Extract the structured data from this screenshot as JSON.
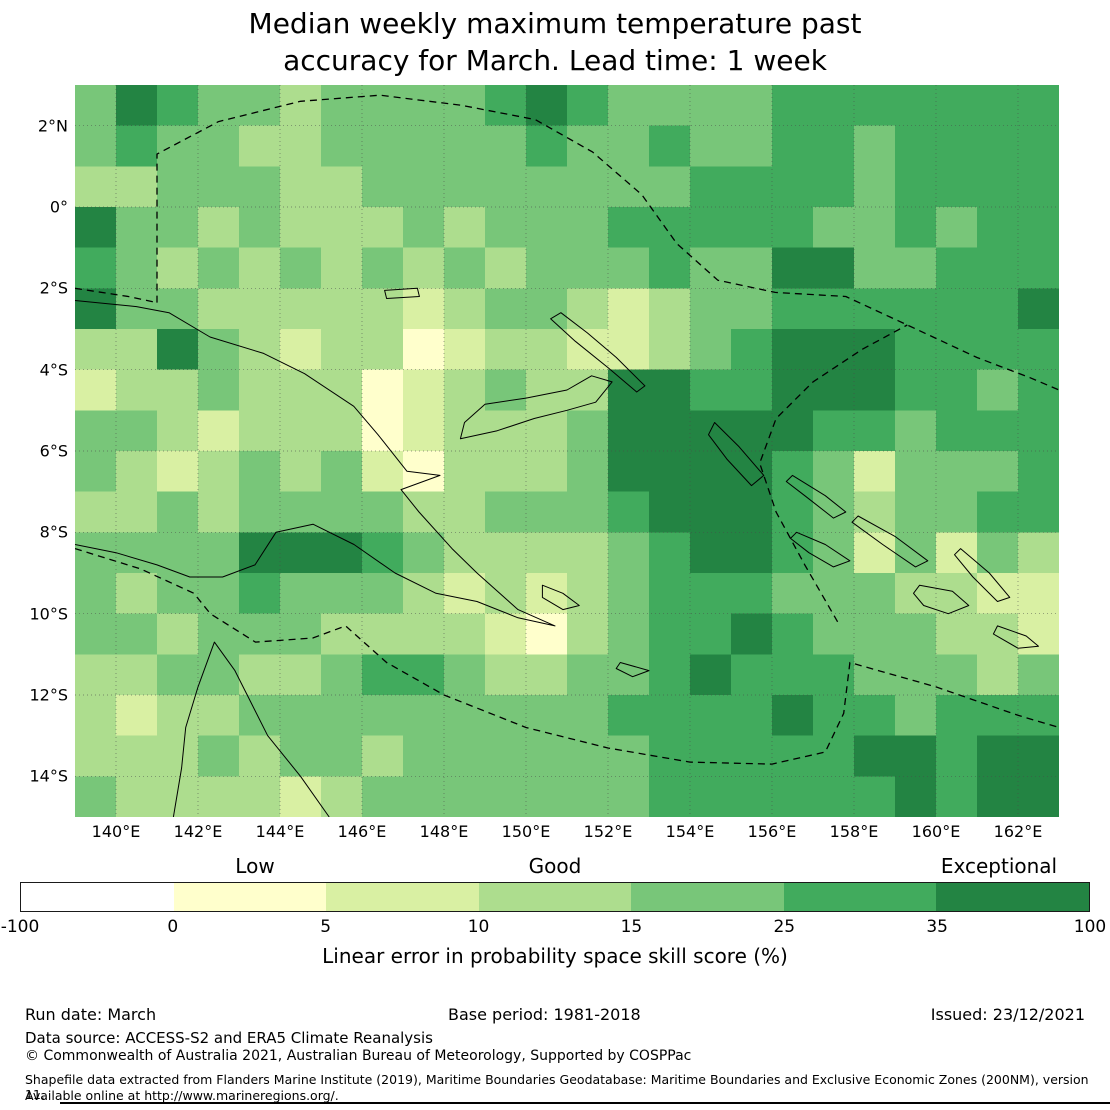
{
  "title": "Median weekly maximum temperature past\naccuracy for March. Lead time: 1 week",
  "map": {
    "lat_ticks": [
      "2°N",
      "0°",
      "2°S",
      "4°S",
      "6°S",
      "8°S",
      "10°S",
      "12°S",
      "14°S"
    ],
    "lon_ticks": [
      "140°E",
      "142°E",
      "144°E",
      "146°E",
      "148°E",
      "150°E",
      "152°E",
      "154°E",
      "156°E",
      "158°E",
      "160°E",
      "162°E"
    ]
  },
  "colorbar": {
    "labels": [
      "Low",
      "Good",
      "Exceptional"
    ],
    "ticks": [
      "-100",
      "0",
      "5",
      "10",
      "15",
      "25",
      "35",
      "100"
    ],
    "caption": "Linear error in probability space skill score (%)"
  },
  "chart_data": {
    "type": "heatmap",
    "title": "Median weekly maximum temperature past accuracy for March. Lead time: 1 week",
    "lon_range": [
      139,
      163
    ],
    "lat_range": [
      -15,
      3
    ],
    "cell_size_deg": 1,
    "grid_on": true,
    "palette": [
      "#ffffff",
      "#ffffcc",
      "#d9f0a3",
      "#addd8e",
      "#78c679",
      "#41ab5d",
      "#238443"
    ],
    "palette_bins": {
      "0": "-100-0",
      "1": "0-5",
      "2": "5-10",
      "3": "10-15",
      "4": "15-25",
      "5": "25-35",
      "6": "35-100"
    },
    "legend_labels": [
      "Low",
      "Good",
      "Exceptional"
    ],
    "legend_tick_values": [
      -100,
      0,
      5,
      10,
      15,
      25,
      35,
      100
    ],
    "ylabel": "Linear error in probability space skill score (%)",
    "grid": [
      "465443444456544445555555",
      "454433444445445445545555",
      "334443344444444555545555",
      "644343334344455555445455",
      "543434343434445446644555",
      "644333332344323445555556",
      "336432331233223456665555",
      "233433312343366556665545",
      "443233312333466666554555",
      "432343421333466665424445",
      "334344443344456665434455",
      "444466654333345665424243",
      "434454443232345554443322",
      "443444333321345565444332",
      "334433455433445655544434",
      "323344444444455556554555",
      "333434434444445555566566",
      "433332344444445555556566"
    ]
  },
  "footer": {
    "run_date": "Run date: March",
    "base_period": "Base period: 1981-2018",
    "issued": "Issued: 23/12/2021",
    "data_source": "Data source: ACCESS-S2 and ERA5 Climate Reanalysis",
    "copyright": "© Commonwealth of Australia 2021, Australian Bureau of Meteorology, Supported by COSPPac",
    "shapefile_line1": "Shapefile data extracted from Flanders Marine Institute (2019), Maritime Boundaries Geodatabase: Maritime Boundaries and Exclusive Economic Zones (200NM), version 11.",
    "shapefile_line2": "Available online at http://www.marineregions.org/."
  }
}
